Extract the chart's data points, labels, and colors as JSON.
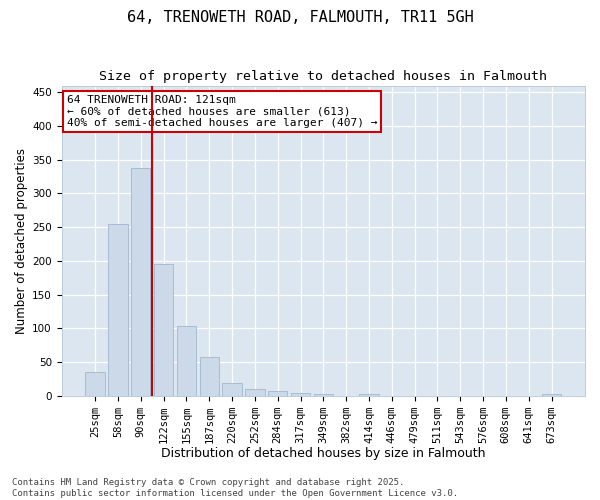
{
  "title": "64, TRENOWETH ROAD, FALMOUTH, TR11 5GH",
  "subtitle": "Size of property relative to detached houses in Falmouth",
  "xlabel": "Distribution of detached houses by size in Falmouth",
  "ylabel": "Number of detached properties",
  "categories": [
    "25sqm",
    "58sqm",
    "90sqm",
    "122sqm",
    "155sqm",
    "187sqm",
    "220sqm",
    "252sqm",
    "284sqm",
    "317sqm",
    "349sqm",
    "382sqm",
    "414sqm",
    "446sqm",
    "479sqm",
    "511sqm",
    "543sqm",
    "576sqm",
    "608sqm",
    "641sqm",
    "673sqm"
  ],
  "values": [
    35,
    255,
    338,
    195,
    103,
    57,
    18,
    10,
    7,
    4,
    3,
    0,
    3,
    0,
    0,
    0,
    0,
    0,
    0,
    0,
    3
  ],
  "bar_color": "#ccd9e8",
  "bar_edgecolor": "#a8bdd0",
  "vline_x": 2.5,
  "vline_color": "#cc0000",
  "annotation_text": "64 TRENOWETH ROAD: 121sqm\n← 60% of detached houses are smaller (613)\n40% of semi-detached houses are larger (407) →",
  "annotation_box_edgecolor": "#cc0000",
  "annotation_facecolor": "#ffffff",
  "plot_background": "#dce6f0",
  "ylim": [
    0,
    460
  ],
  "yticks": [
    0,
    50,
    100,
    150,
    200,
    250,
    300,
    350,
    400,
    450
  ],
  "footer": "Contains HM Land Registry data © Crown copyright and database right 2025.\nContains public sector information licensed under the Open Government Licence v3.0.",
  "title_fontsize": 11,
  "subtitle_fontsize": 9.5,
  "xlabel_fontsize": 9,
  "ylabel_fontsize": 8.5,
  "tick_fontsize": 7.5,
  "annotation_fontsize": 8,
  "footer_fontsize": 6.5
}
